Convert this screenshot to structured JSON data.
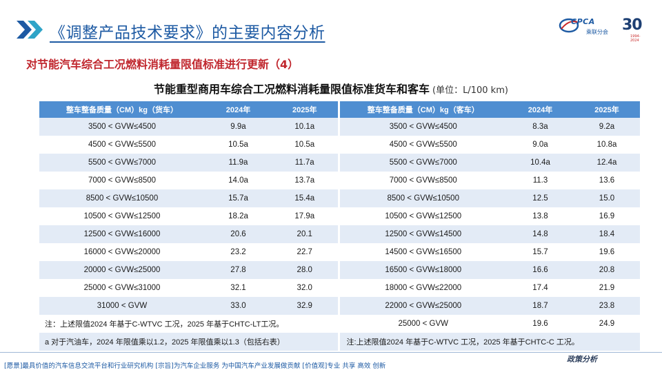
{
  "header": {
    "title": "《调整产品技术要求》的主要内容分析"
  },
  "logo": {
    "brand": "CPCA",
    "org": "乘联分会",
    "anniversary": "30",
    "years": "1994-2024",
    "colors": {
      "brand": "#1d5aa3",
      "accent": "#c82a2a"
    }
  },
  "subtitle": "对节能汽车综合工况燃料消耗量限值标准进行更新（4）",
  "table_title": {
    "main": "节能重型商用车综合工况燃料消耗量限值标准货车和客车",
    "unit": "(单位：L/100 km)"
  },
  "table": {
    "headers": [
      "整车整备质量（CM）kg（货车）",
      "2024年",
      "2025年",
      "整车整备质量（CM）kg（客车）",
      "2024年",
      "2025年"
    ],
    "rows": [
      [
        "3500 < GVW≤4500",
        "9.9a",
        "10.1a",
        "3500 < GVW≤4500",
        "8.3a",
        "9.2a"
      ],
      [
        "4500 < GVW≤5500",
        "10.5a",
        "10.5a",
        "4500 < GVW≤5500",
        "9.0a",
        "10.8a"
      ],
      [
        "5500 < GVW≤7000",
        "11.9a",
        "11.7a",
        "5500 < GVW≤7000",
        "10.4a",
        "12.4a"
      ],
      [
        "7000 < GVW≤8500",
        "14.0a",
        "13.7a",
        "7000 < GVW≤8500",
        "11.3",
        "13.6"
      ],
      [
        "8500 < GVW≤10500",
        "15.7a",
        "15.4a",
        "8500 < GVW≤10500",
        "12.5",
        "15.0"
      ],
      [
        "10500 < GVW≤12500",
        "18.2a",
        "17.9a",
        "10500 < GVW≤12500",
        "13.8",
        "16.9"
      ],
      [
        "12500 < GVW≤16000",
        "20.6",
        "20.1",
        "12500 < GVW≤14500",
        "14.8",
        "18.4"
      ],
      [
        "16000 < GVW≤20000",
        "23.2",
        "22.7",
        "14500 < GVW≤16500",
        "15.7",
        "19.6"
      ],
      [
        "20000 < GVW≤25000",
        "27.8",
        "28.0",
        "16500 < GVW≤18000",
        "16.6",
        "20.8"
      ],
      [
        "25000 < GVW≤31000",
        "32.1",
        "32.0",
        "18000 < GVW≤22000",
        "17.4",
        "21.9"
      ],
      [
        "31000 < GVW",
        "33.0",
        "32.9",
        "22000 < GVW≤25000",
        "18.7",
        "23.8"
      ]
    ],
    "note_row_1": {
      "left": "注：上述限值2024 年基于C-WTVC 工况，2025 年基于CHTC-LT工况。",
      "right": [
        "25000 < GVW",
        "19.6",
        "24.9"
      ]
    },
    "note_row_2": {
      "left": "a 对于汽油车，2024 年限值乘以1.2，2025 年限值乘以1.3（包括右表）",
      "right": "注:上述限值2024 年基于C-WTVC 工况，2025 年基于CHTC-C 工况。"
    },
    "colors": {
      "header_bg": "#4f8ed1",
      "stripe": "#e3ebf6"
    }
  },
  "footer": {
    "text": "[愿景]最具价值的汽车信息交流平台和行业研究机构   [宗旨]为汽车企业服务  为中国汽车产业发展做贡献   [价值观]专业  共享  高效  创新",
    "tag": "政策分析"
  }
}
